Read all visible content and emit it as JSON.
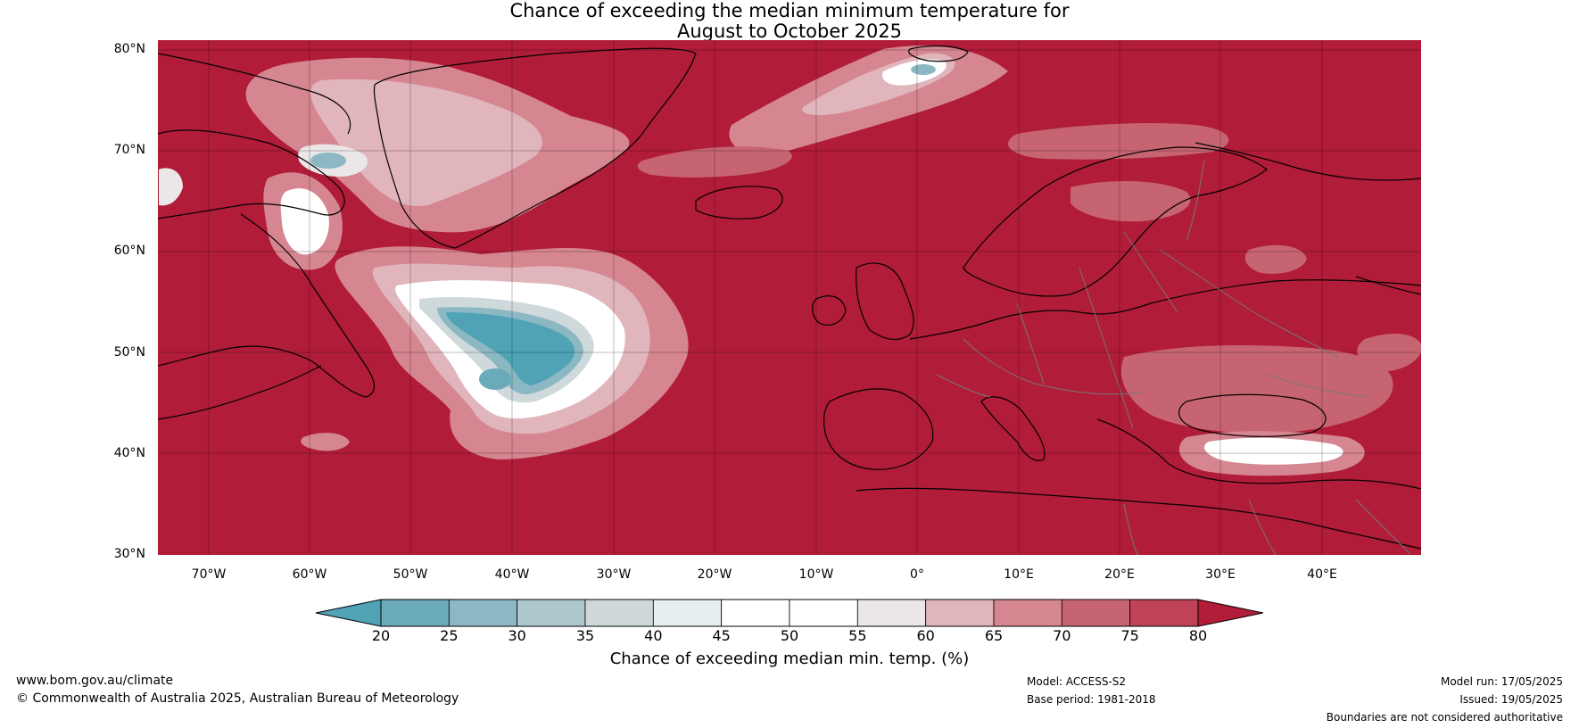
{
  "title": {
    "line1": "Chance of exceeding the median minimum temperature for",
    "line2": "August to October 2025"
  },
  "map": {
    "lat_labels": [
      "80°N",
      "70°N",
      "60°N",
      "50°N",
      "40°N",
      "30°N"
    ],
    "lon_labels": [
      "70°W",
      "60°W",
      "50°W",
      "40°W",
      "30°W",
      "20°W",
      "10°W",
      "0°",
      "10°E",
      "20°E",
      "30°E",
      "40°E"
    ],
    "background_color": "#b11c38"
  },
  "colorbar": {
    "ticks": [
      "20",
      "25",
      "30",
      "35",
      "40",
      "45",
      "50",
      "55",
      "60",
      "65",
      "70",
      "75",
      "80"
    ],
    "colors": [
      "#4fa3b5",
      "#6aaab9",
      "#8bb8c3",
      "#adc8cc",
      "#cfd9dc",
      "#e8eff0",
      "#ffffff",
      "#ffffff",
      "#ebe7e8",
      "#e0b5bb",
      "#d58690",
      "#c76472",
      "#bf4256",
      "#b11c38"
    ],
    "low_color": "#4fa3b5",
    "high_color": "#b11c38",
    "title": "Chance of exceeding median min. temp. (%)"
  },
  "footer": {
    "website": "www.bom.gov.au/climate",
    "copyright": "© Commonwealth of Australia 2025, Australian Bureau of Meteorology",
    "model": "Model: ACCESS-S2",
    "base_period": "Base period: 1981-2018",
    "model_run": "Model run: 17/05/2025",
    "issued": "Issued: 19/05/2025",
    "disclaimer": "Boundaries are not considered authoritative"
  }
}
